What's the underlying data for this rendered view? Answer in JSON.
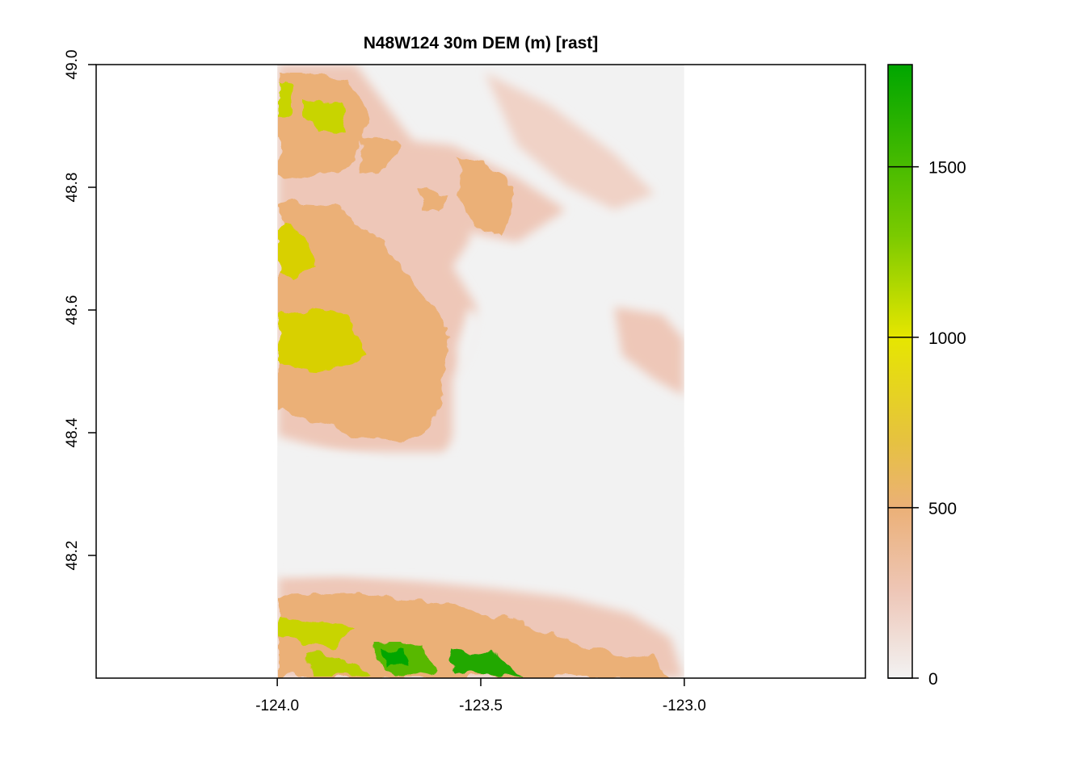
{
  "chart_data": {
    "type": "heatmap",
    "title": "N48W124 30m DEM (m) [rast]",
    "xlabel": "",
    "ylabel": "",
    "xlim": [
      -124.445,
      -122.555
    ],
    "ylim": [
      48.0,
      49.0
    ],
    "x_ticks": [
      -124.0,
      -123.5,
      -123.0
    ],
    "x_tick_labels": [
      "-124.0",
      "-123.5",
      "-123.0"
    ],
    "y_ticks": [
      48.2,
      48.4,
      48.6,
      48.8,
      49.0
    ],
    "y_tick_labels": [
      "48.2",
      "48.4",
      "48.6",
      "48.8",
      "49.0"
    ],
    "raster_extent": {
      "xmin": -124.0,
      "xmax": -123.0,
      "ymin": 48.0,
      "ymax": 49.0
    },
    "legend": {
      "placement": "right",
      "range": [
        0,
        1800
      ],
      "ticks": [
        0,
        500,
        1000,
        1500
      ],
      "tick_labels": [
        "0",
        "500",
        "1000",
        "1500"
      ],
      "color_stops": [
        {
          "value": 0,
          "color": "#F2F2F2"
        },
        {
          "value": 250,
          "color": "#EEC7B8"
        },
        {
          "value": 500,
          "color": "#EBB077"
        },
        {
          "value": 700,
          "color": "#E6C23F"
        },
        {
          "value": 1000,
          "color": "#E6E600"
        },
        {
          "value": 1300,
          "color": "#7ACA00"
        },
        {
          "value": 1800,
          "color": "#00A600"
        }
      ]
    },
    "grid": false
  }
}
